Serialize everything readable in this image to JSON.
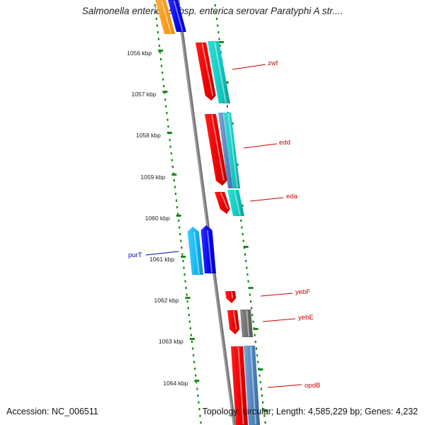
{
  "title": "Salmonella enterica subsp. enterica serovar Paratyphi A str....",
  "footer": {
    "accession": "Accession: NC_006511",
    "summary": "Topology: circular; Length: 4,585,229 bp; Genes: 4,232"
  },
  "colors": {
    "backbone": "#808080",
    "ticks": "#1a8a1a",
    "forward_label": "#cc0000",
    "reverse_label": "#0000aa"
  },
  "ticks": [
    "1056 kbp",
    "1057 kbp",
    "1058 kbp",
    "1059 kbp",
    "1060 kbp",
    "1061 kbp",
    "1062 kbp",
    "1063 kbp",
    "1064 kbp"
  ],
  "gene_labels": [
    {
      "name": "zwf",
      "strand": "forward"
    },
    {
      "name": "edd",
      "strand": "forward"
    },
    {
      "name": "eda",
      "strand": "forward"
    },
    {
      "name": "purT",
      "strand": "reverse"
    },
    {
      "name": "yebF",
      "strand": "forward"
    },
    {
      "name": "yebE",
      "strand": "forward"
    },
    {
      "name": "opdB",
      "strand": "forward"
    }
  ]
}
